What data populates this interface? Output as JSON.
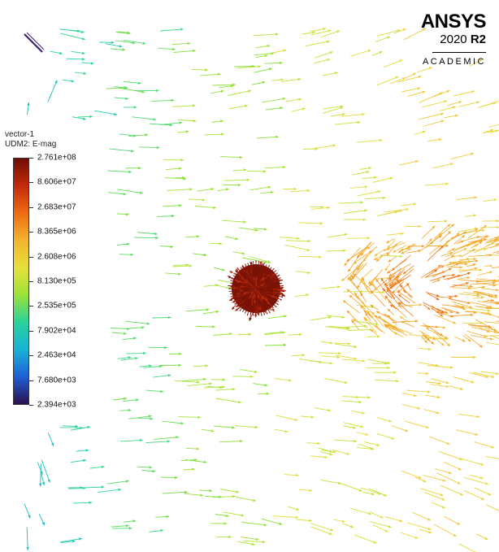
{
  "legend": {
    "title_line1": "vector-1",
    "title_line2": "UDM2: E-mag",
    "ticks": [
      "2.761e+08",
      "8.606e+07",
      "2.683e+07",
      "8.365e+06",
      "2.608e+06",
      "8.130e+05",
      "2.535e+05",
      "7.902e+04",
      "2.463e+04",
      "7.680e+03",
      "2.394e+03"
    ],
    "colormap": [
      "#2b0f4e",
      "#1f5fd6",
      "#18b3d6",
      "#2bd29a",
      "#9be23a",
      "#e8e03a",
      "#f3b42f",
      "#ee6b12",
      "#c42a0c",
      "#6e0d05"
    ]
  },
  "brand": {
    "name": "ANSYS",
    "version": "2020",
    "release": "R2",
    "edition": "ACADEMIC"
  },
  "field_colors": {
    "wall": "#19c9b5",
    "cyan_green": "#3fd88a",
    "green": "#79df3a",
    "yellow_green": "#b8e43a",
    "yellow": "#e5dc3e",
    "light_orange": "#f2c23a",
    "orange": "#f39a28",
    "deep_orange": "#ea6a14",
    "red": "#c8330e",
    "dark_red": "#7a1206",
    "blue": "#2a86d8"
  }
}
